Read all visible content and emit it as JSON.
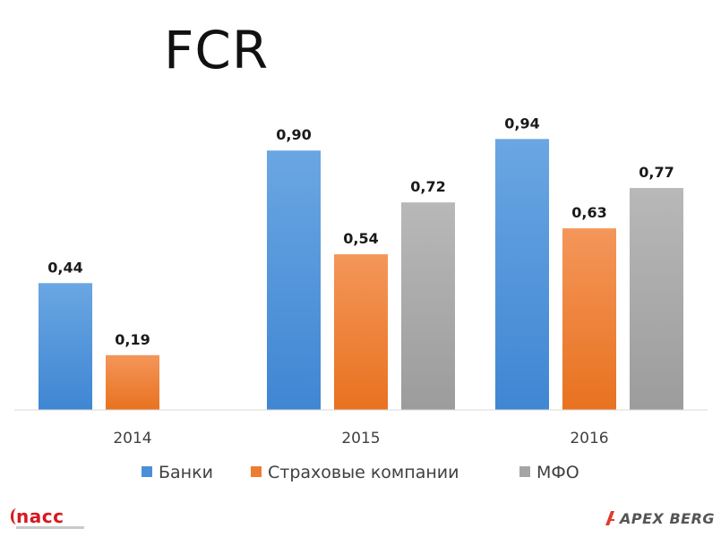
{
  "title": "FCR",
  "chart_data": {
    "type": "bar",
    "title": "FCR",
    "categories": [
      "2014",
      "2015",
      "2016"
    ],
    "series": [
      {
        "name": "Банки",
        "color": "#4a90d9",
        "values": [
          0.44,
          0.9,
          0.94
        ],
        "labels": [
          "0,44",
          "0,90",
          "0,94"
        ]
      },
      {
        "name": "Страховые компании",
        "color": "#ed7d31",
        "values": [
          0.19,
          0.54,
          0.63
        ],
        "labels": [
          "0,19",
          "0,54",
          "0,63"
        ]
      },
      {
        "name": "МФО",
        "color": "#a5a5a5",
        "values": [
          null,
          0.72,
          0.77
        ],
        "labels": [
          "",
          "0,72",
          "0,77"
        ]
      }
    ],
    "xlabel": "",
    "ylabel": "",
    "ylim": [
      0,
      1.0
    ],
    "grid": false,
    "legend_position": "bottom"
  },
  "logos": {
    "left": "nacc",
    "right": "APEX BERG"
  }
}
